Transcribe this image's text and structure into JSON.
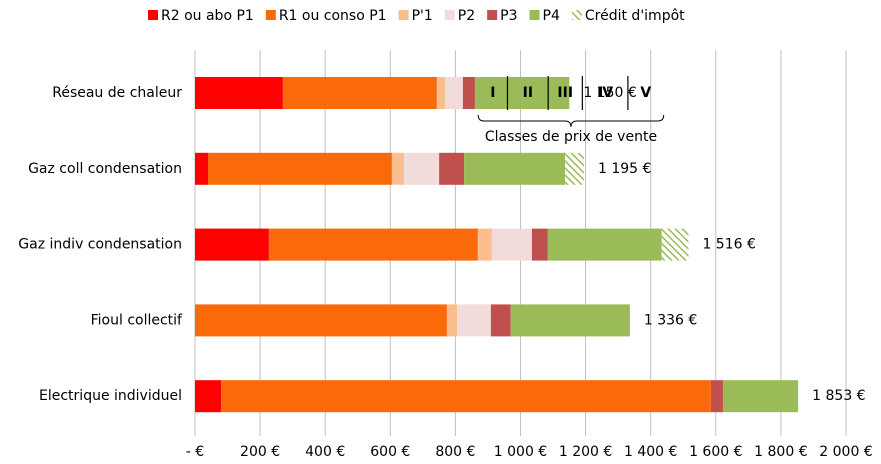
{
  "chart_data": {
    "type": "stacked-barh",
    "categories": [
      "Réseau de chaleur",
      "Gaz coll condensation",
      "Gaz indiv condensation",
      "Fioul collectif",
      "Electrique individuel"
    ],
    "series": [
      {
        "name": "R2 ou abo P1",
        "color": "#ff0000",
        "values": [
          270,
          40,
          227,
          0,
          80
        ]
      },
      {
        "name": "R1 ou conso P1",
        "color": "#fa6a0a",
        "values": [
          473,
          565,
          642,
          774,
          1505
        ]
      },
      {
        "name": "P'1",
        "color": "#fbbf8f",
        "values": [
          25,
          37,
          43,
          31,
          0
        ]
      },
      {
        "name": "P2",
        "color": "#f2dcdb",
        "values": [
          55,
          108,
          123,
          104,
          0
        ]
      },
      {
        "name": "P3",
        "color": "#c0504d",
        "values": [
          37,
          77,
          49,
          61,
          37
        ]
      },
      {
        "name": "P4",
        "color": "#9bbb59",
        "values": [
          290,
          310,
          350,
          366,
          231
        ]
      },
      {
        "name": "Crédit d'impôt",
        "color": "#9bbb59",
        "hatch": true,
        "values": [
          0,
          58,
          82,
          0,
          0
        ]
      }
    ],
    "totals": [
      1150,
      1195,
      1516,
      1336,
      1853
    ],
    "total_labels": [
      "1 150 €",
      "1 195 €",
      "1 516 €",
      "1 336 €",
      "1 853 €"
    ],
    "price_classes": [
      "I",
      "II",
      "III",
      "IV",
      "V"
    ],
    "price_class_edges": [
      870,
      960,
      1085,
      1190,
      1330,
      1440
    ],
    "annotation": "Classes de prix de vente",
    "xlim": [
      0,
      2000
    ],
    "xticks": [
      {
        "value": 0,
        "label": "-   €"
      },
      {
        "value": 200,
        "label": "200 €"
      },
      {
        "value": 400,
        "label": "400 €"
      },
      {
        "value": 600,
        "label": "600 €"
      },
      {
        "value": 800,
        "label": "800 €"
      },
      {
        "value": 1000,
        "label": "1 000 €"
      },
      {
        "value": 1200,
        "label": "1 200 €"
      },
      {
        "value": 1400,
        "label": "1 400 €"
      },
      {
        "value": 1600,
        "label": "1 600 €"
      },
      {
        "value": 1800,
        "label": "1 800 €"
      },
      {
        "value": 2000,
        "label": "2 000 €"
      }
    ],
    "grid": true,
    "legend": "top"
  }
}
